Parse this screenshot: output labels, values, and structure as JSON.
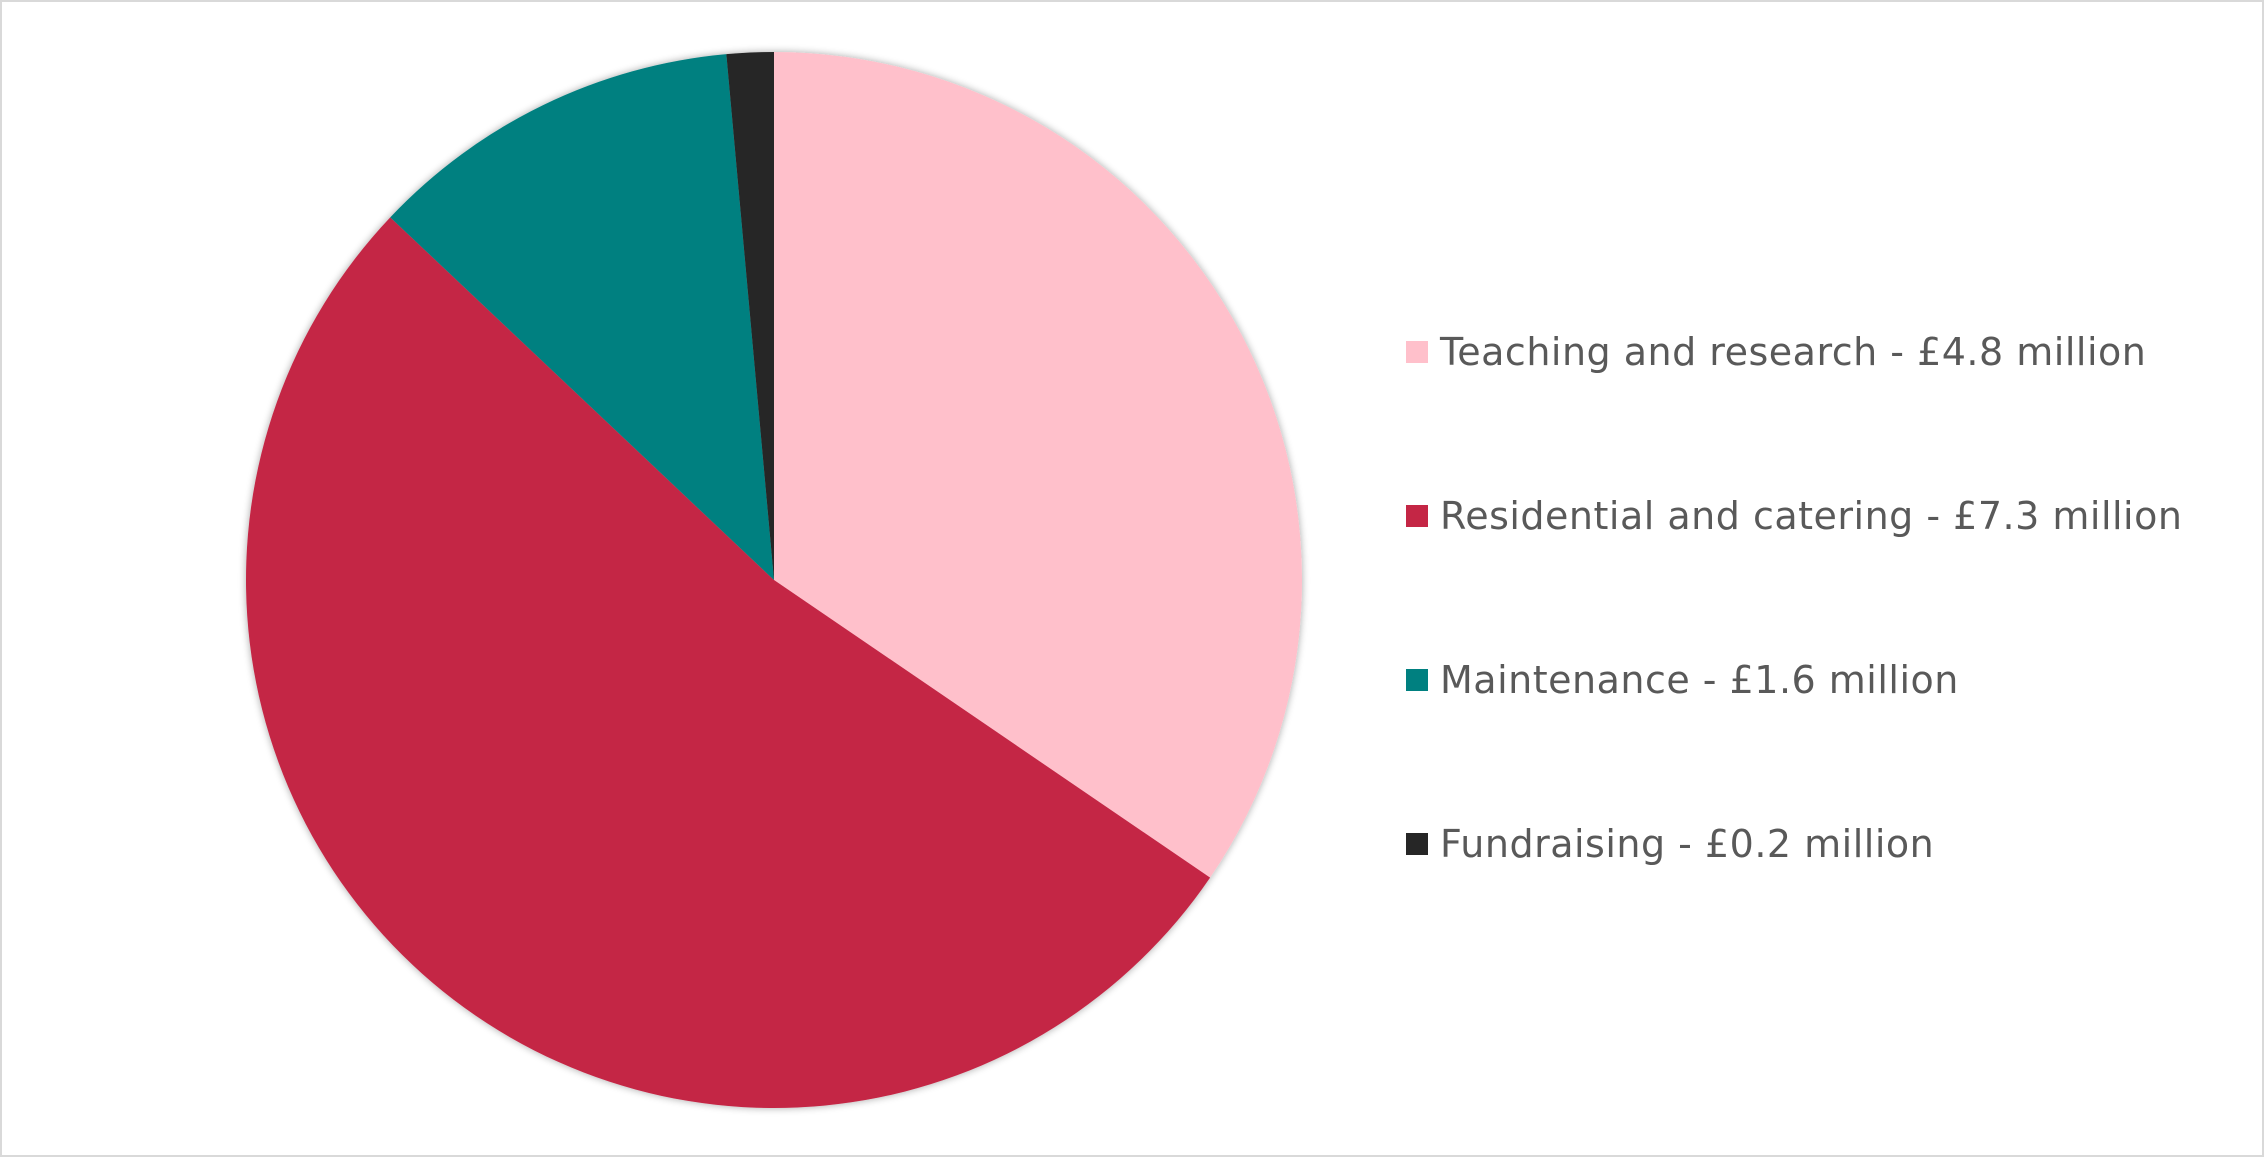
{
  "chart_data": {
    "type": "pie",
    "title": "",
    "slices": [
      {
        "label": "Teaching and research",
        "value": 4.8,
        "legend": "Teaching and research - £4.8 million",
        "color": "#FFC0CB"
      },
      {
        "label": "Residential and catering",
        "value": 7.3,
        "legend": "Residential and catering - £7.3 million",
        "color": "#C42645"
      },
      {
        "label": "Maintenance",
        "value": 1.6,
        "legend": "Maintenance - £1.6 million",
        "color": "#008080"
      },
      {
        "label": "Fundraising",
        "value": 0.2,
        "legend": "Fundraising - £0.2 million",
        "color": "#262626"
      }
    ],
    "unit": "£ million",
    "start_angle": "12 o'clock",
    "direction": "clockwise",
    "legend_position": "right"
  }
}
